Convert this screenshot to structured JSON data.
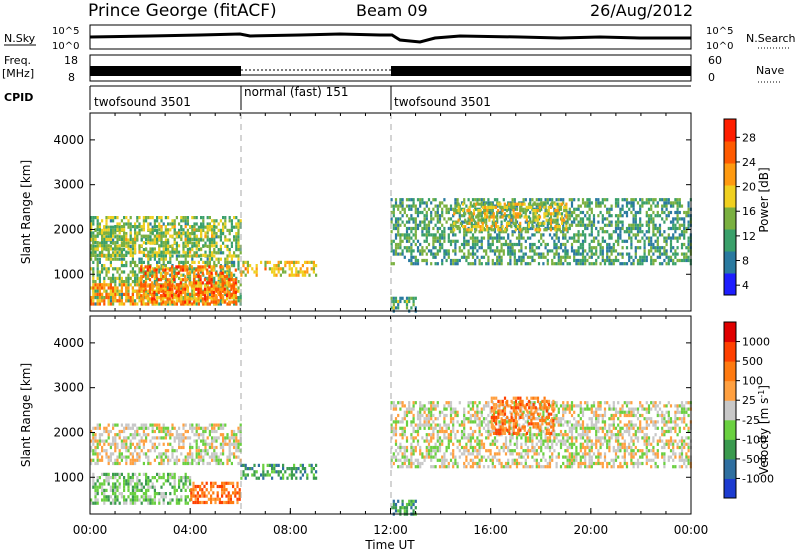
{
  "header": {
    "station": "Prince George (fitACF)",
    "beam": "Beam 09",
    "date": "26/Aug/2012"
  },
  "top_panels": {
    "nsky_label": "N.Sky",
    "nsearch_label": "N.Search",
    "noise_ticks": [
      "10^5",
      "10^0"
    ],
    "freq_label": "Freq.",
    "freq_unit": "[MHz]",
    "freq_ticks": [
      "18",
      "8"
    ],
    "nave_label": "Nave",
    "nave_ticks": [
      "60",
      "0"
    ],
    "cpid_label": "CPID",
    "cpid_segments": [
      {
        "label": "twofsound 3501",
        "start_hour": 0,
        "end_hour": 6
      },
      {
        "label": "normal (fast) 151",
        "start_hour": 6,
        "end_hour": 12
      },
      {
        "label": "twofsound 3501",
        "start_hour": 12,
        "end_hour": 24
      }
    ]
  },
  "chart_data": [
    {
      "type": "heatmap",
      "name": "power-panel",
      "ylabel": "Slant Range [km]",
      "xlim_hours": [
        0,
        24
      ],
      "ylim": [
        180,
        4600
      ],
      "yticks": [
        1000,
        2000,
        3000,
        4000
      ],
      "colorbar_label": "Power [dB]",
      "colorbar_ticks": [
        "28",
        "24",
        "20",
        "16",
        "12",
        "8",
        "4"
      ],
      "colorbar_range": [
        0,
        30
      ],
      "colorbar_colors": [
        "#1e1eff",
        "#2a7aa0",
        "#3aa06a",
        "#7ab040",
        "#f0d020",
        "#ff9a10",
        "#ff5a00",
        "#ff1e00"
      ],
      "echo_regions": [
        {
          "t0": 0.0,
          "t1": 6.0,
          "r0": 300,
          "r1": 2300,
          "level": 12
        },
        {
          "t0": 0.0,
          "t1": 5.8,
          "r0": 300,
          "r1": 800,
          "level": 22
        },
        {
          "t0": 2.0,
          "t1": 5.8,
          "r0": 400,
          "r1": 1200,
          "level": 24
        },
        {
          "t0": 0.0,
          "t1": 5.0,
          "r0": 1400,
          "r1": 2100,
          "level": 14
        },
        {
          "t0": 6.0,
          "t1": 9.0,
          "r0": 1000,
          "r1": 1300,
          "level": 18
        },
        {
          "t0": 12.0,
          "t1": 24.0,
          "r0": 1200,
          "r1": 2700,
          "level": 9
        },
        {
          "t0": 14.5,
          "t1": 19.0,
          "r0": 2000,
          "r1": 2600,
          "level": 16
        },
        {
          "t0": 12.0,
          "t1": 13.0,
          "r0": 200,
          "r1": 500,
          "level": 10
        }
      ]
    },
    {
      "type": "heatmap",
      "name": "velocity-panel",
      "ylabel": "Slant Range [km]",
      "xlabel": "Time UT",
      "xlim_hours": [
        0,
        24
      ],
      "xticks": [
        "00:00",
        "04:00",
        "08:00",
        "12:00",
        "16:00",
        "20:00",
        "00:00"
      ],
      "ylim": [
        180,
        4600
      ],
      "yticks": [
        1000,
        2000,
        3000,
        4000
      ],
      "colorbar_label": "Velocity [m s",
      "colorbar_unit_suffix": "-1",
      "colorbar_close": "]",
      "colorbar_ticks": [
        "1000",
        "500",
        "100",
        "25",
        "-25",
        "-100",
        "-500",
        "-1000"
      ],
      "colorbar_colors": [
        "#1c3bd0",
        "#2f6fa0",
        "#3a9a4e",
        "#6ad040",
        "#c8c8c8",
        "#ffa040",
        "#ff7a10",
        "#ff4000",
        "#e00000"
      ],
      "echo_regions": [
        {
          "t0": 0.0,
          "t1": 6.0,
          "r0": 1300,
          "r1": 2200,
          "class": 4
        },
        {
          "t0": 0.0,
          "t1": 4.0,
          "r0": 400,
          "r1": 1100,
          "class": 3
        },
        {
          "t0": 4.0,
          "t1": 6.0,
          "r0": 400,
          "r1": 900,
          "class": 6
        },
        {
          "t0": 6.0,
          "t1": 9.0,
          "r0": 1000,
          "r1": 1300,
          "class": 2
        },
        {
          "t0": 12.0,
          "t1": 24.0,
          "r0": 1200,
          "r1": 2700,
          "class": 4
        },
        {
          "t0": 16.0,
          "t1": 18.5,
          "r0": 2000,
          "r1": 2800,
          "class": 6
        },
        {
          "t0": 12.0,
          "t1": 13.0,
          "r0": 200,
          "r1": 500,
          "class": 2
        }
      ]
    }
  ]
}
